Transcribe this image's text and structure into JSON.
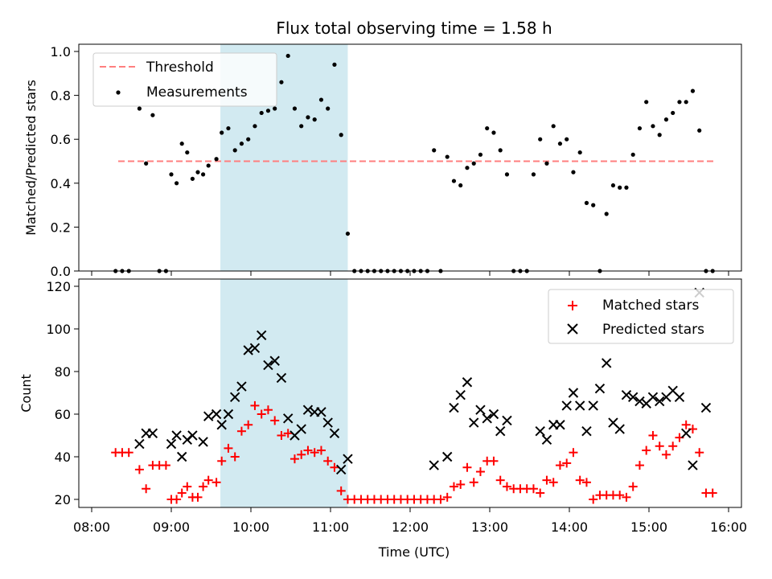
{
  "chart_data": [
    {
      "type": "scatter",
      "title": "Flux total observing time = 1.58 h",
      "xlabel": "",
      "ylabel": "Matched/Predicted stars",
      "xlim": [
        "08:00",
        "16:00"
      ],
      "ylim": [
        0,
        1.0
      ],
      "yticks": [
        0,
        0.2,
        0.4,
        0.6,
        0.8,
        1.0
      ],
      "ytick_labels": [
        "0.0",
        "0.2",
        "0.4",
        "0.6",
        "0.8",
        "1.0"
      ],
      "grid": false,
      "legend_position": "top-left",
      "shaded_span": {
        "start": "09:37",
        "end": "11:13",
        "color": "#add8e6"
      },
      "threshold": {
        "name": "Threshold",
        "y": 0.5,
        "x_start": "08:20",
        "x_end": "15:50",
        "color": "#ff7f7f"
      },
      "series": [
        {
          "name": "Measurements",
          "color": "#000000",
          "x": [
            "08:18",
            "08:23",
            "08:28",
            "08:36",
            "08:41",
            "08:46",
            "08:51",
            "08:56",
            "09:00",
            "09:04",
            "09:08",
            "09:12",
            "09:16",
            "09:20",
            "09:24",
            "09:28",
            "09:34",
            "09:38",
            "09:43",
            "09:48",
            "09:53",
            "09:58",
            "10:03",
            "10:08",
            "10:13",
            "10:18",
            "10:23",
            "10:28",
            "10:33",
            "10:38",
            "10:43",
            "10:48",
            "10:53",
            "10:58",
            "11:03",
            "11:08",
            "11:13",
            "11:18",
            "11:23",
            "11:28",
            "11:33",
            "11:38",
            "11:43",
            "11:48",
            "11:53",
            "11:58",
            "12:03",
            "12:08",
            "12:13",
            "12:18",
            "12:23",
            "12:28",
            "12:33",
            "12:38",
            "12:43",
            "12:48",
            "12:53",
            "12:58",
            "13:03",
            "13:08",
            "13:13",
            "13:18",
            "13:23",
            "13:28",
            "13:33",
            "13:38",
            "13:43",
            "13:48",
            "13:53",
            "13:58",
            "14:03",
            "14:08",
            "14:13",
            "14:18",
            "14:23",
            "14:28",
            "14:33",
            "14:38",
            "14:43",
            "14:48",
            "14:53",
            "14:58",
            "15:03",
            "15:08",
            "15:13",
            "15:18",
            "15:23",
            "15:28",
            "15:33",
            "15:38",
            "15:43",
            "15:48"
          ],
          "y": [
            0,
            0,
            0,
            0.74,
            0.49,
            0.71,
            0,
            0,
            0.44,
            0.4,
            0.58,
            0.54,
            0.42,
            0.45,
            0.44,
            0.48,
            0.51,
            0.63,
            0.65,
            0.55,
            0.58,
            0.6,
            0.66,
            0.72,
            0.73,
            0.74,
            0.86,
            0.98,
            0.74,
            0.66,
            0.7,
            0.69,
            0.78,
            0.74,
            0.94,
            0.62,
            0.17,
            0,
            0,
            0,
            0,
            0,
            0,
            0,
            0,
            0,
            0,
            0,
            0,
            0.55,
            0,
            0.52,
            0.41,
            0.39,
            0.47,
            0.49,
            0.53,
            0.65,
            0.63,
            0.55,
            0.44,
            0,
            0,
            0,
            0.44,
            0.6,
            0.49,
            0.66,
            0.58,
            0.6,
            0.45,
            0.54,
            0.31,
            0.3,
            0,
            0.26,
            0.39,
            0.38,
            0.38,
            0.53,
            0.65,
            0.77,
            0.66,
            0.62,
            0.69,
            0.72,
            0.77,
            0.77,
            0.82,
            0.64,
            0,
            0
          ]
        }
      ]
    },
    {
      "type": "scatter",
      "title": "",
      "xlabel": "Time (UTC)",
      "ylabel": "Count",
      "xlim": [
        "08:00",
        "16:00"
      ],
      "xticks": [
        "08:00",
        "09:00",
        "10:00",
        "11:00",
        "12:00",
        "13:00",
        "14:00",
        "15:00",
        "16:00"
      ],
      "ylim": [
        15,
        122
      ],
      "yticks": [
        20,
        40,
        60,
        80,
        100,
        120
      ],
      "grid": false,
      "legend_position": "top-right",
      "shaded_span": {
        "start": "09:37",
        "end": "11:13",
        "color": "#add8e6"
      },
      "series": [
        {
          "name": "Matched stars",
          "marker": "+",
          "color": "#ff0000",
          "x": [
            "08:18",
            "08:23",
            "08:28",
            "08:36",
            "08:41",
            "08:46",
            "08:51",
            "08:56",
            "09:00",
            "09:04",
            "09:08",
            "09:12",
            "09:16",
            "09:20",
            "09:24",
            "09:28",
            "09:34",
            "09:38",
            "09:43",
            "09:48",
            "09:53",
            "09:58",
            "10:03",
            "10:08",
            "10:13",
            "10:18",
            "10:23",
            "10:28",
            "10:33",
            "10:38",
            "10:43",
            "10:48",
            "10:53",
            "10:58",
            "11:03",
            "11:08",
            "11:13",
            "11:18",
            "11:23",
            "11:28",
            "11:33",
            "11:38",
            "11:43",
            "11:48",
            "11:53",
            "11:58",
            "12:03",
            "12:08",
            "12:13",
            "12:18",
            "12:23",
            "12:28",
            "12:33",
            "12:38",
            "12:43",
            "12:48",
            "12:53",
            "12:58",
            "13:03",
            "13:08",
            "13:13",
            "13:18",
            "13:23",
            "13:28",
            "13:33",
            "13:38",
            "13:43",
            "13:48",
            "13:53",
            "13:58",
            "14:03",
            "14:08",
            "14:13",
            "14:18",
            "14:23",
            "14:28",
            "14:33",
            "14:38",
            "14:43",
            "14:48",
            "14:53",
            "14:58",
            "15:03",
            "15:08",
            "15:13",
            "15:18",
            "15:23",
            "15:28",
            "15:33",
            "15:38",
            "15:43",
            "15:48"
          ],
          "y": [
            42,
            42,
            42,
            34,
            25,
            36,
            36,
            36,
            20,
            20,
            23,
            26,
            21,
            21,
            26,
            29,
            28,
            38,
            44,
            40,
            52,
            55,
            64,
            60,
            62,
            57,
            50,
            51,
            39,
            41,
            43,
            42,
            43,
            38,
            35,
            24,
            20,
            20,
            20,
            20,
            20,
            20,
            20,
            20,
            20,
            20,
            20,
            20,
            20,
            20,
            20,
            21,
            26,
            27,
            35,
            28,
            33,
            38,
            38,
            29,
            26,
            25,
            25,
            25,
            25,
            23,
            29,
            28,
            36,
            37,
            42,
            29,
            28,
            20,
            22,
            22,
            22,
            22,
            21,
            26,
            36,
            43,
            50,
            45,
            41,
            45,
            49,
            55,
            53,
            42,
            23,
            23
          ]
        },
        {
          "name": "Predicted stars",
          "marker": "x",
          "color": "#000000",
          "x": [
            "08:36",
            "08:41",
            "08:46",
            "09:00",
            "09:04",
            "09:08",
            "09:12",
            "09:16",
            "09:24",
            "09:28",
            "09:34",
            "09:38",
            "09:43",
            "09:48",
            "09:53",
            "09:58",
            "10:03",
            "10:08",
            "10:13",
            "10:18",
            "10:23",
            "10:28",
            "10:33",
            "10:38",
            "10:43",
            "10:48",
            "10:53",
            "10:58",
            "11:03",
            "11:08",
            "11:13",
            "12:18",
            "12:28",
            "12:33",
            "12:38",
            "12:43",
            "12:48",
            "12:53",
            "12:58",
            "13:03",
            "13:08",
            "13:13",
            "13:38",
            "13:43",
            "13:48",
            "13:53",
            "13:58",
            "14:03",
            "14:08",
            "14:13",
            "14:18",
            "14:23",
            "14:28",
            "14:33",
            "14:38",
            "14:43",
            "14:48",
            "14:53",
            "14:58",
            "15:03",
            "15:08",
            "15:13",
            "15:18",
            "15:23",
            "15:28",
            "15:33",
            "15:38",
            "15:43"
          ],
          "y": [
            46,
            51,
            51,
            46,
            50,
            40,
            48,
            50,
            47,
            59,
            60,
            55,
            60,
            68,
            73,
            90,
            91,
            97,
            83,
            85,
            77,
            58,
            50,
            53,
            62,
            61,
            61,
            56,
            51,
            34,
            39,
            36,
            40,
            63,
            69,
            75,
            56,
            62,
            58,
            60,
            52,
            57,
            52,
            48,
            55,
            55,
            64,
            70,
            64,
            52,
            64,
            72,
            84,
            56,
            53,
            69,
            68,
            66,
            65,
            68,
            66,
            68,
            71,
            68,
            51,
            36,
            117,
            63
          ]
        }
      ]
    }
  ]
}
